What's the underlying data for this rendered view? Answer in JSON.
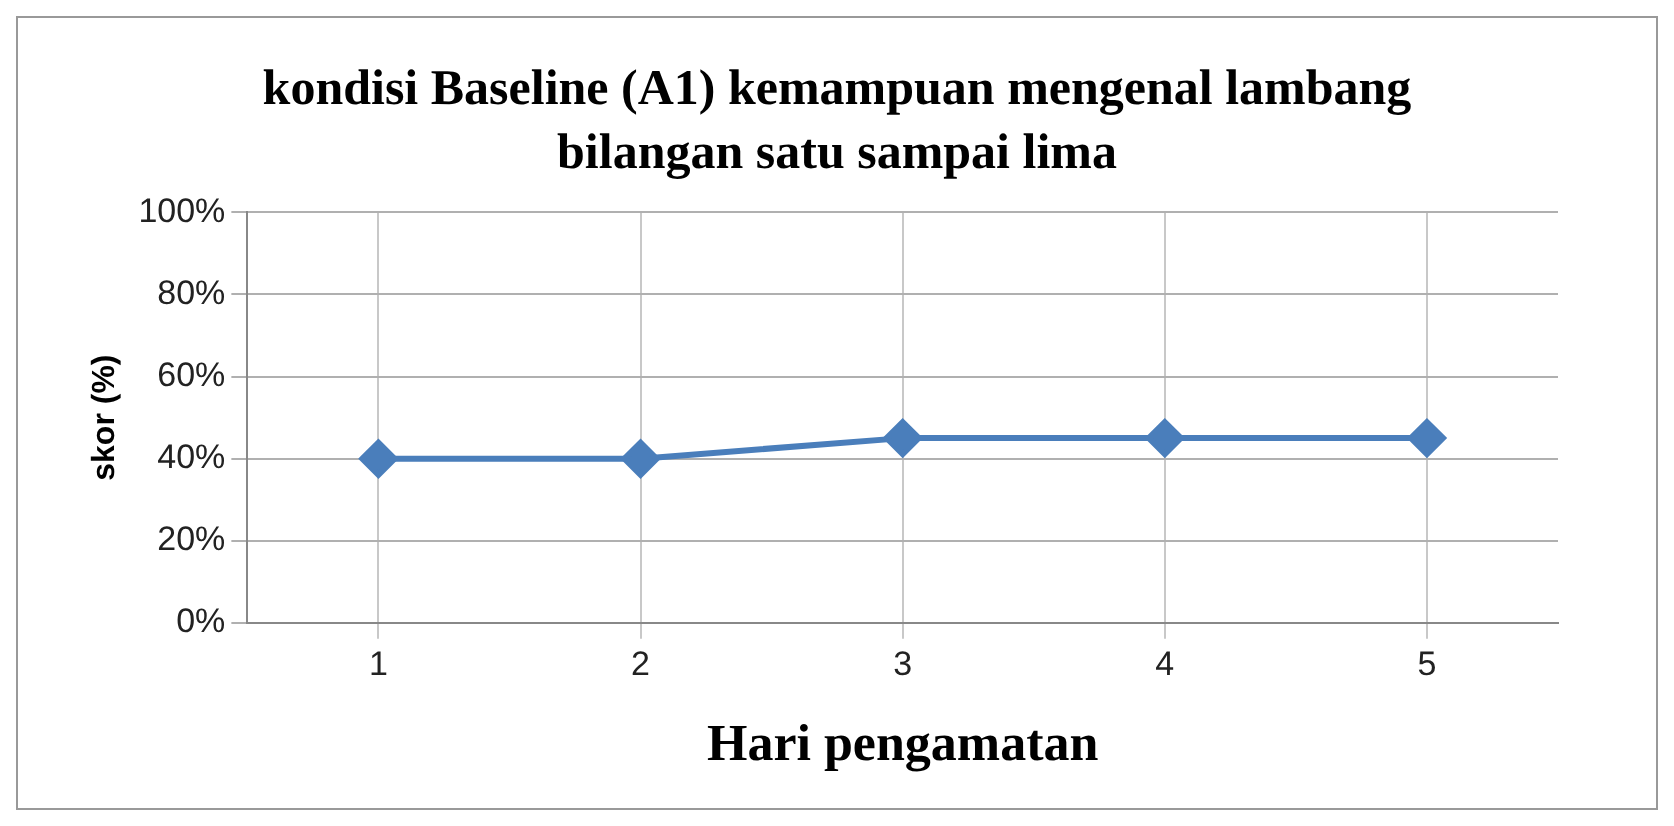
{
  "chart_data": {
    "type": "line",
    "title": "kondisi Baseline (A1)  kemampuan mengenal lambang bilangan satu sampai lima",
    "xlabel": "Hari pengamatan",
    "ylabel": "skor (%)",
    "categories": [
      "1",
      "2",
      "3",
      "4",
      "5"
    ],
    "series": [
      {
        "color": "#4a7ebb",
        "values": [
          40,
          40,
          45,
          45,
          45
        ]
      }
    ],
    "ylim": [
      0,
      100
    ],
    "yticks": [
      {
        "value": 0,
        "label": "0%"
      },
      {
        "value": 20,
        "label": "20%"
      },
      {
        "value": 40,
        "label": "40%"
      },
      {
        "value": 60,
        "label": "60%"
      },
      {
        "value": 80,
        "label": "80%"
      },
      {
        "value": 100,
        "label": "100%"
      }
    ],
    "grid": true,
    "legend": false,
    "marker": "diamond",
    "line_style": "solid"
  }
}
